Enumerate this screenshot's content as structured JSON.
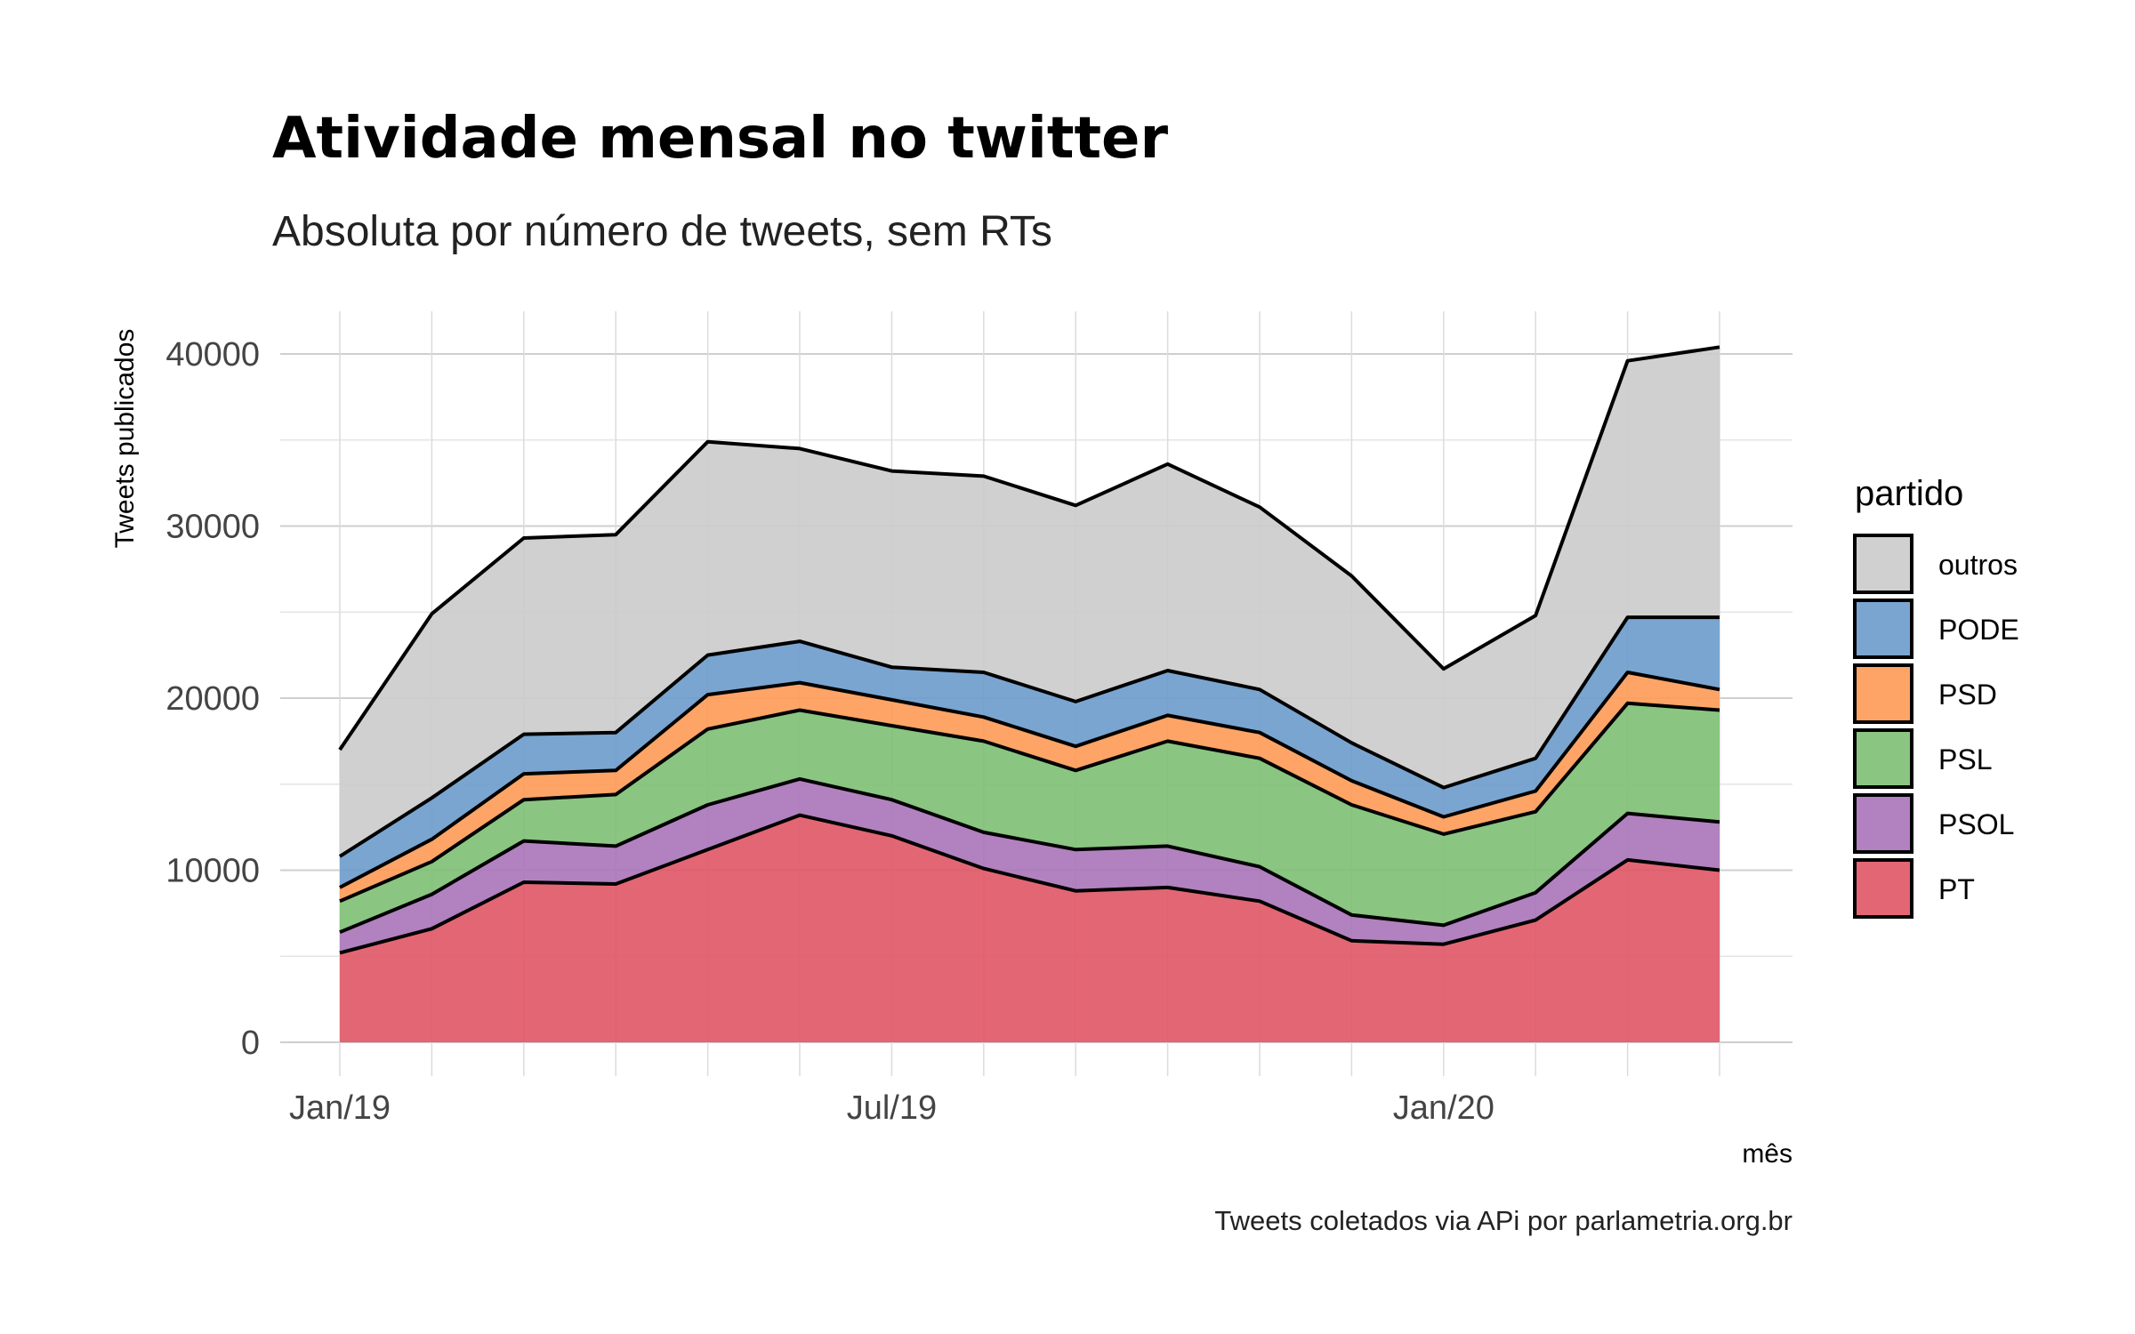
{
  "chart_data": {
    "type": "area",
    "stacked": true,
    "title": "Atividade mensal no twitter",
    "subtitle": "Absoluta por número de tweets, sem RTs",
    "xlabel": "mês",
    "ylabel": "Tweets publicados",
    "caption": "Tweets coletados via APi por parlametria.org.br",
    "legend_title": "partido",
    "legend_position": "right",
    "grid": true,
    "x": [
      "Jan/19",
      "Feb/19",
      "Mar/19",
      "Apr/19",
      "May/19",
      "Jun/19",
      "Jul/19",
      "Aug/19",
      "Sep/19",
      "Oct/19",
      "Nov/19",
      "Dec/19",
      "Jan/20",
      "Feb/20",
      "Mar/20",
      "Apr/20"
    ],
    "x_tick_labels": [
      "Jan/19",
      "Jul/19",
      "Jan/20"
    ],
    "x_tick_indices": [
      0,
      6,
      12
    ],
    "ylim": [
      0,
      42000
    ],
    "y_ticks": [
      0,
      10000,
      20000,
      30000,
      40000
    ],
    "series": [
      {
        "name": "PT",
        "color": "#e05566",
        "values": [
          5200,
          6600,
          9300,
          9200,
          11200,
          13200,
          12000,
          10100,
          8800,
          9000,
          8200,
          5900,
          5700,
          7100,
          10600,
          10000
        ]
      },
      {
        "name": "PSOL",
        "color": "#a874b8",
        "values": [
          1200,
          2000,
          2400,
          2200,
          2600,
          2100,
          2100,
          2100,
          2400,
          2400,
          2000,
          1500,
          1100,
          1600,
          2700,
          2800
        ]
      },
      {
        "name": "PSL",
        "color": "#7dbf73",
        "values": [
          1800,
          1900,
          2400,
          3000,
          4400,
          4000,
          4300,
          5300,
          4600,
          6100,
          6300,
          6400,
          5300,
          4700,
          6400,
          6500
        ]
      },
      {
        "name": "PSD",
        "color": "#fd9a55",
        "values": [
          800,
          1300,
          1500,
          1400,
          2000,
          1600,
          1500,
          1400,
          1400,
          1500,
          1500,
          1400,
          1000,
          1200,
          1800,
          1200
        ]
      },
      {
        "name": "PODE",
        "color": "#6b9bcb",
        "values": [
          1800,
          2400,
          2300,
          2200,
          2300,
          2400,
          1900,
          2600,
          2600,
          2600,
          2500,
          2200,
          1700,
          1900,
          3200,
          4200
        ]
      },
      {
        "name": "outros",
        "color": "#cbcbcb",
        "values": [
          6200,
          10700,
          11400,
          11500,
          12400,
          11200,
          11400,
          11400,
          11400,
          12000,
          10600,
          9700,
          6900,
          8300,
          14900,
          15700
        ]
      }
    ]
  }
}
